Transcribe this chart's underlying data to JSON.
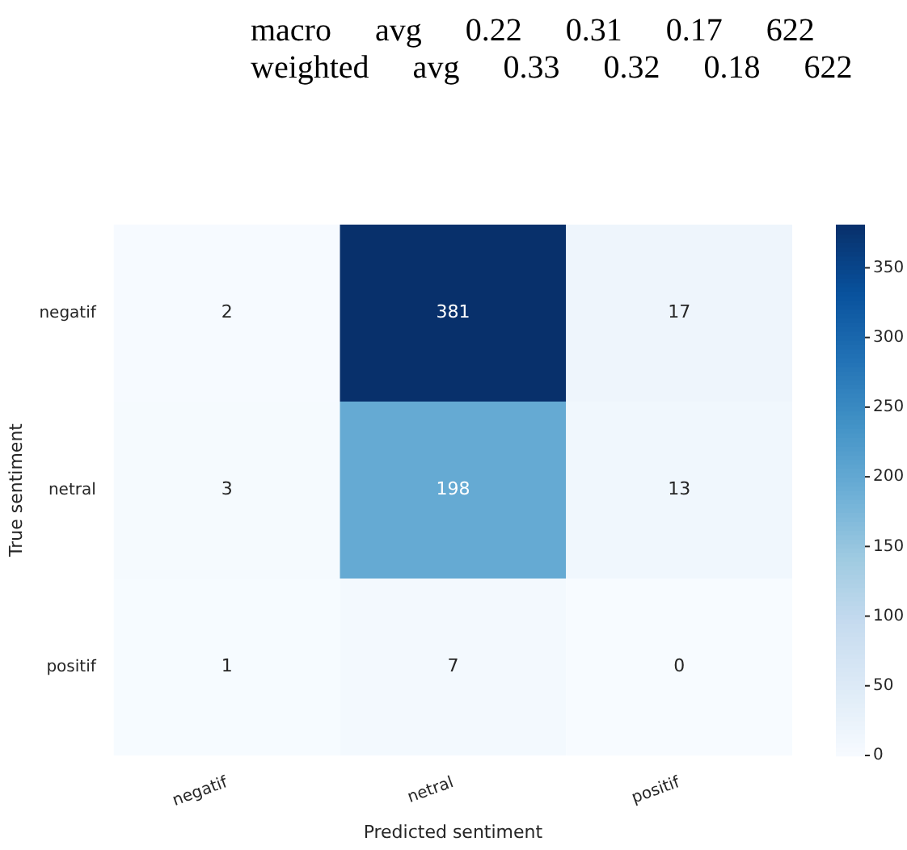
{
  "chart_data": {
    "type": "heatmap",
    "annotations": [
      "macro avg 0.22 0.31 0.17 622",
      "weighted avg 0.33 0.32 0.18 622"
    ],
    "xlabel": "Predicted sentiment",
    "ylabel": "True sentiment",
    "categories": [
      "negatif",
      "netral",
      "positif"
    ],
    "y_categories": [
      "negatif",
      "netral",
      "positif"
    ],
    "cells": [
      [
        2,
        381,
        17
      ],
      [
        3,
        198,
        13
      ],
      [
        1,
        7,
        0
      ]
    ],
    "data_labels": true,
    "clim": [
      0,
      381
    ],
    "cticks": [
      0,
      50,
      100,
      150,
      200,
      250,
      300,
      350
    ]
  }
}
